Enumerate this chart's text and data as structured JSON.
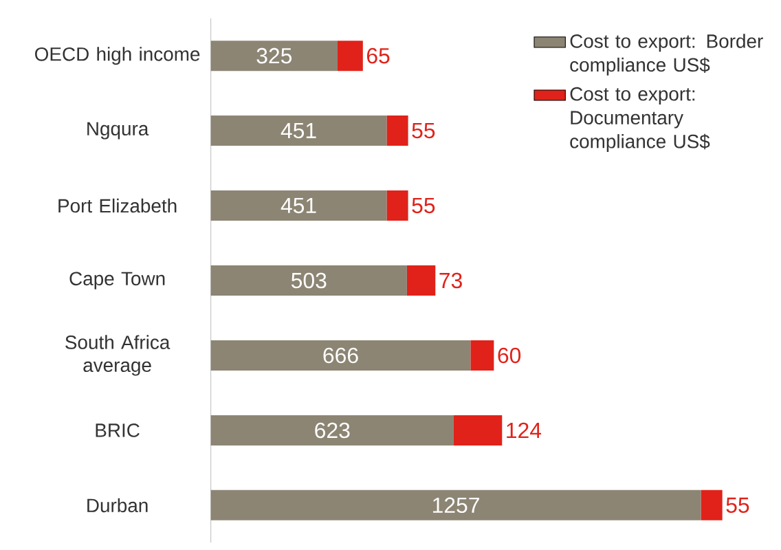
{
  "chart_data": {
    "type": "bar",
    "orientation": "horizontal",
    "stacked": true,
    "data_labels": true,
    "legend": "top right",
    "categories": [
      "OECD high income",
      "Ngqura",
      "Port Elizabeth",
      "Cape Town",
      "South Africa average",
      "BRIC",
      "Durban"
    ],
    "series": [
      {
        "name": "Cost to export: Border compliance US$",
        "color": "#8c8574",
        "values": [
          325,
          451,
          451,
          503,
          666,
          623,
          1257
        ]
      },
      {
        "name": "Cost to export: Documentary compliance US$",
        "color": "#e0221a",
        "values": [
          65,
          55,
          55,
          73,
          60,
          124,
          55
        ]
      }
    ]
  }
}
